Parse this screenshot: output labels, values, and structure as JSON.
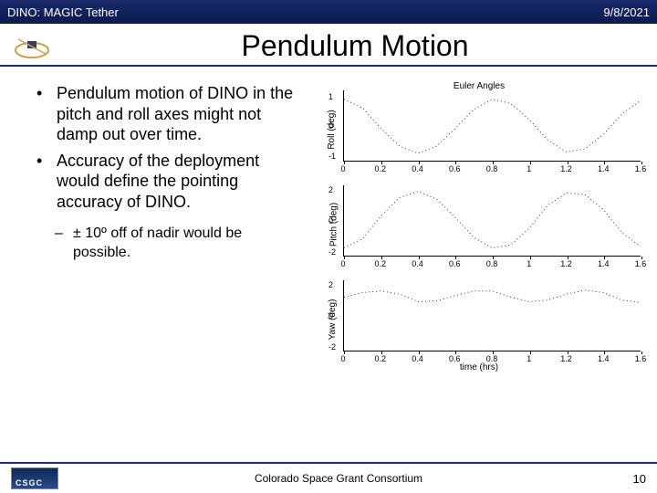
{
  "header": {
    "left": "DINO: MAGIC Tether",
    "right": "9/8/2021"
  },
  "title": "Pendulum Motion",
  "bullets": {
    "main": [
      "Pendulum motion of DINO in the pitch and roll axes might not damp out over time.",
      "Accuracy of the deployment would define the pointing accuracy of DINO."
    ],
    "sub": [
      "± 10º off of nadir would be possible."
    ]
  },
  "charts": {
    "title": "Euler Angles",
    "xlabel": "time (hrs)",
    "xlim": [
      0,
      1.6
    ],
    "xticks": [
      0,
      0.2,
      0.4,
      0.6,
      0.8,
      1,
      1.2,
      1.4,
      1.6
    ],
    "line_color": "#333333",
    "line_style": "dotted",
    "panels": [
      {
        "ylabel": "Roll (deg)",
        "ylim": [
          -1.2,
          1.2
        ],
        "yticks": [
          -1,
          0,
          1
        ],
        "x": [
          0,
          0.1,
          0.2,
          0.3,
          0.4,
          0.5,
          0.6,
          0.7,
          0.8,
          0.9,
          1.0,
          1.1,
          1.2,
          1.3,
          1.4,
          1.5,
          1.6
        ],
        "y": [
          0.9,
          0.6,
          -0.1,
          -0.7,
          -0.95,
          -0.7,
          -0.1,
          0.55,
          0.9,
          0.75,
          0.2,
          -0.5,
          -0.9,
          -0.8,
          -0.3,
          0.4,
          0.85
        ]
      },
      {
        "ylabel": "Pitch (deg)",
        "ylim": [
          -2.3,
          2.3
        ],
        "yticks": [
          -2,
          0,
          2
        ],
        "x": [
          0,
          0.1,
          0.2,
          0.3,
          0.4,
          0.5,
          0.6,
          0.7,
          0.8,
          0.9,
          1.0,
          1.1,
          1.2,
          1.3,
          1.4,
          1.5,
          1.6
        ],
        "y": [
          -1.8,
          -1.2,
          0.3,
          1.5,
          1.9,
          1.4,
          0.2,
          -1.1,
          -1.8,
          -1.6,
          -0.5,
          1.0,
          1.8,
          1.7,
          0.7,
          -0.8,
          -1.7
        ]
      },
      {
        "ylabel": "Yaw (deg)",
        "ylim": [
          -2.3,
          2.3
        ],
        "yticks": [
          -2,
          0,
          2
        ],
        "x": [
          0,
          0.1,
          0.2,
          0.3,
          0.4,
          0.5,
          0.6,
          0.7,
          0.8,
          0.9,
          1.0,
          1.1,
          1.2,
          1.3,
          1.4,
          1.5,
          1.6
        ],
        "y": [
          1.2,
          1.5,
          1.6,
          1.4,
          0.9,
          0.95,
          1.3,
          1.6,
          1.6,
          1.2,
          0.9,
          1.0,
          1.4,
          1.65,
          1.5,
          1.0,
          0.85
        ]
      }
    ]
  },
  "footer": {
    "org": "Colorado Space Grant Consortium",
    "page": "10"
  }
}
